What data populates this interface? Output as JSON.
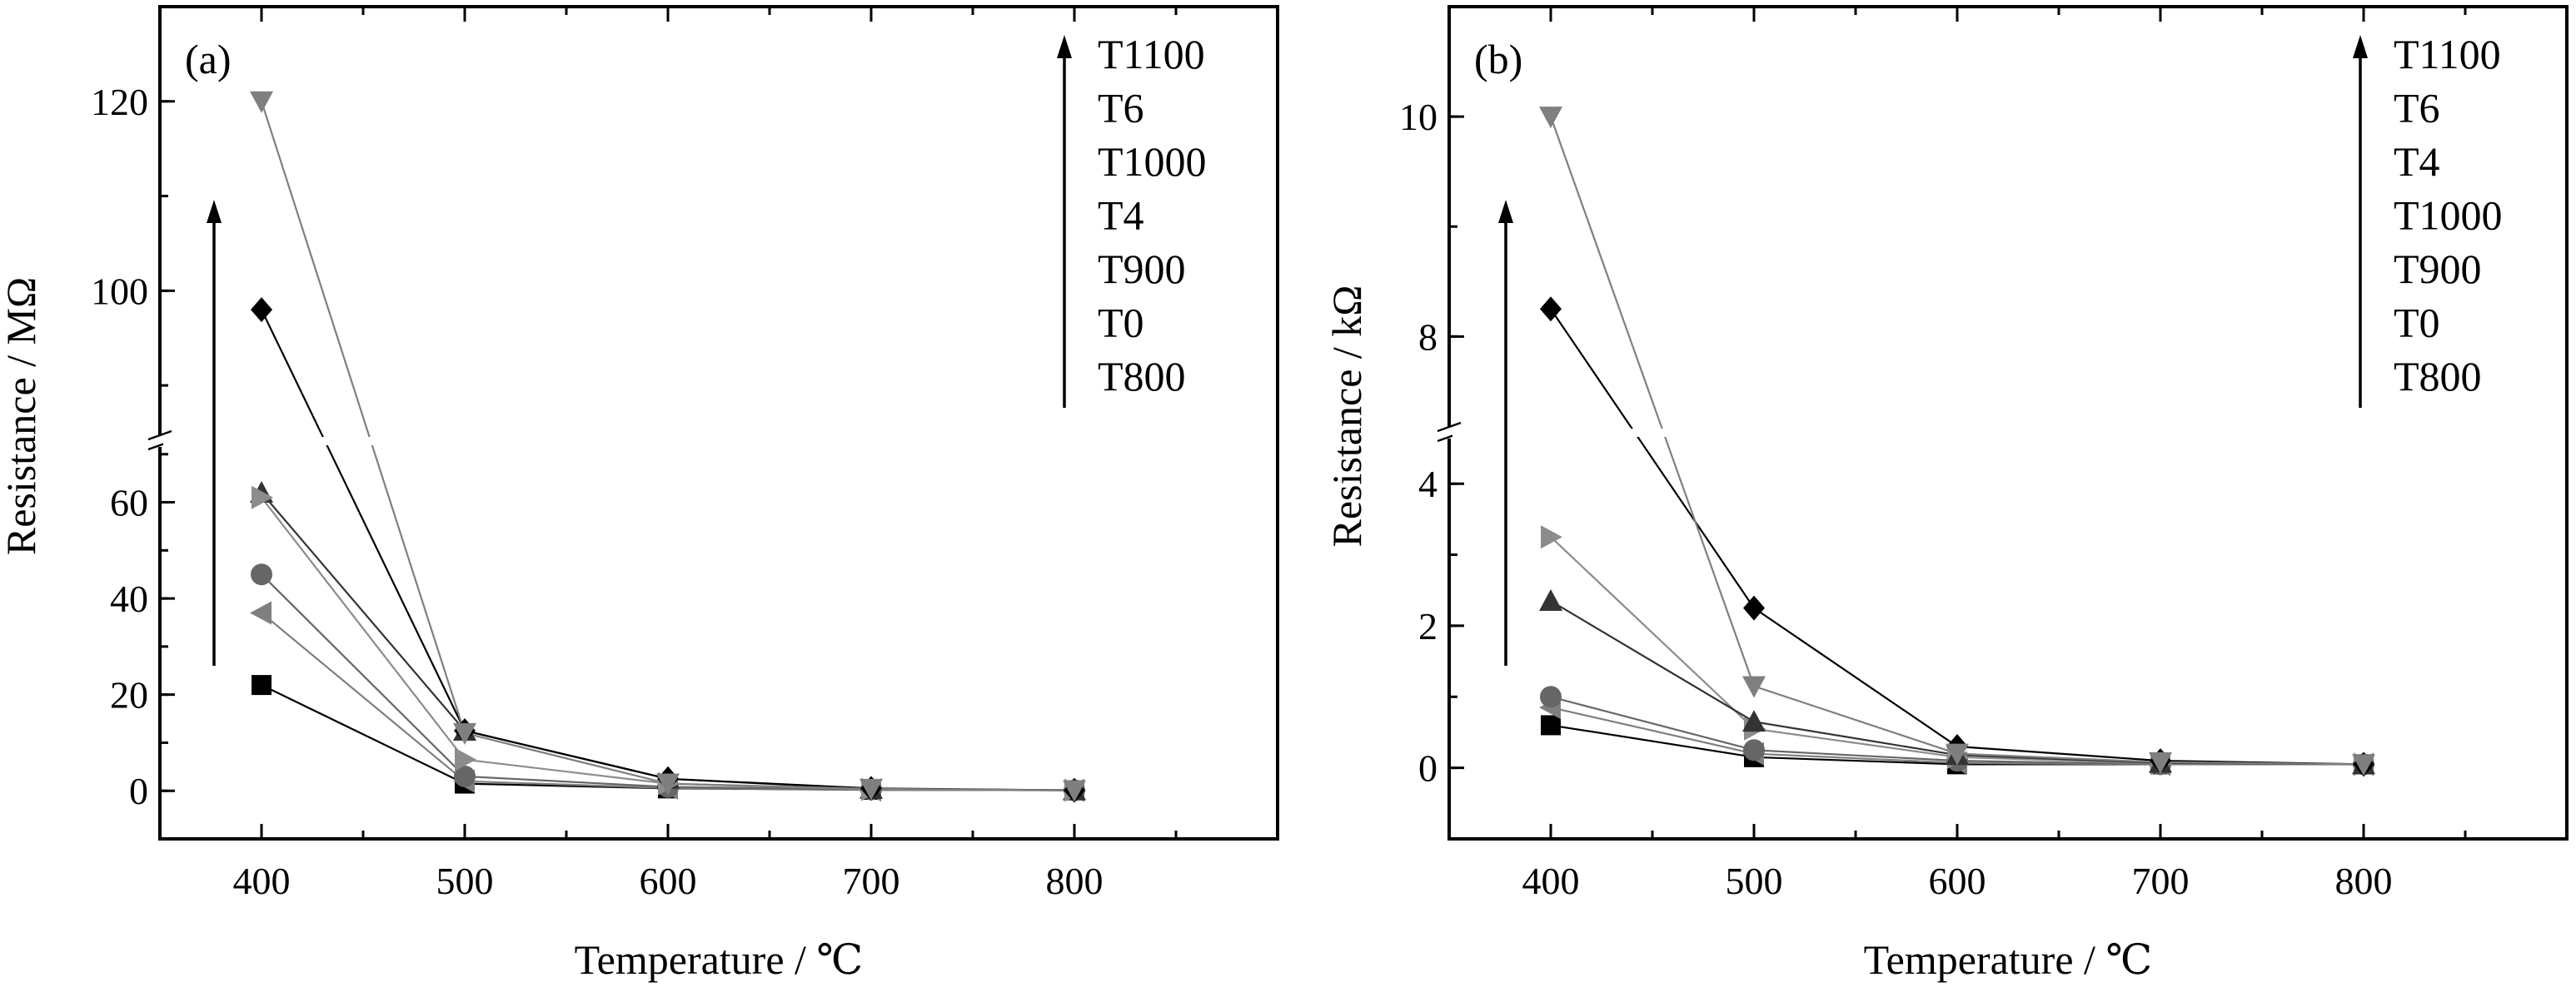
{
  "chart_data": [
    {
      "type": "line",
      "panel_label": "(a)",
      "xlabel": "Temperature / ℃",
      "ylabel": "Resistance / MΩ",
      "x": [
        400,
        500,
        600,
        700,
        800
      ],
      "xlim": [
        350,
        900
      ],
      "xticks": [
        "400",
        "500",
        "600",
        "700",
        "800"
      ],
      "y_break": true,
      "ylim_lower": [
        -10,
        71
      ],
      "ylim_upper": [
        85,
        130
      ],
      "yticks_lower": [
        "0",
        "20",
        "40",
        "60"
      ],
      "yticks_upper": [
        "100",
        "120"
      ],
      "yticks_lower_values": [
        0,
        20,
        40,
        60
      ],
      "yticks_upper_values": [
        100,
        120
      ],
      "legend_order": [
        "T1100",
        "T6",
        "T1000",
        "T4",
        "T900",
        "T0",
        "T800"
      ],
      "series": [
        {
          "name": "T800",
          "marker": "square",
          "color": "#000000",
          "values": [
            22,
            1.5,
            0.5,
            0.2,
            0.1
          ]
        },
        {
          "name": "T0",
          "marker": "triangle-left",
          "color": "#7f7f7f",
          "values": [
            37,
            2.0,
            0.6,
            0.2,
            0.1
          ]
        },
        {
          "name": "T900",
          "marker": "circle",
          "color": "#666666",
          "values": [
            45,
            3.0,
            0.8,
            0.3,
            0.1
          ]
        },
        {
          "name": "T4",
          "marker": "triangle-up",
          "color": "#333333",
          "values": [
            62,
            12.5,
            2.5,
            0.4,
            0.1
          ]
        },
        {
          "name": "T1000",
          "marker": "triangle-right",
          "color": "#8c8c8c",
          "values": [
            61,
            6.5,
            1.5,
            0.3,
            0.1
          ]
        },
        {
          "name": "T6",
          "marker": "diamond",
          "color": "#000000",
          "values": [
            98,
            12.5,
            2.5,
            0.5,
            0.1
          ]
        },
        {
          "name": "T1100",
          "marker": "triangle-down",
          "color": "#7f7f7f",
          "values": [
            120,
            12.0,
            1.5,
            0.4,
            0.1
          ]
        }
      ]
    },
    {
      "type": "line",
      "panel_label": "(b)",
      "xlabel": "Temperature / ℃",
      "ylabel": "Resistance / kΩ",
      "x": [
        400,
        500,
        600,
        700,
        800
      ],
      "xlim": [
        350,
        900
      ],
      "xticks": [
        "400",
        "500",
        "600",
        "700",
        "800"
      ],
      "y_break": true,
      "ylim_lower": [
        -1,
        4.6
      ],
      "ylim_upper": [
        7.2,
        11.0
      ],
      "yticks_lower": [
        "0",
        "2",
        "4"
      ],
      "yticks_upper": [
        "8",
        "10"
      ],
      "yticks_lower_values": [
        0,
        2,
        4
      ],
      "yticks_upper_values": [
        8,
        10
      ],
      "legend_order": [
        "T1100",
        "T6",
        "T4",
        "T1000",
        "T900",
        "T0",
        "T800"
      ],
      "series": [
        {
          "name": "T800",
          "marker": "square",
          "color": "#000000",
          "values": [
            0.6,
            0.15,
            0.05,
            0.05,
            0.05
          ]
        },
        {
          "name": "T0",
          "marker": "triangle-left",
          "color": "#7f7f7f",
          "values": [
            0.85,
            0.2,
            0.07,
            0.05,
            0.05
          ]
        },
        {
          "name": "T900",
          "marker": "circle",
          "color": "#666666",
          "values": [
            1.0,
            0.25,
            0.1,
            0.05,
            0.05
          ]
        },
        {
          "name": "T1000",
          "marker": "triangle-right",
          "color": "#8c8c8c",
          "values": [
            3.25,
            0.55,
            0.15,
            0.06,
            0.05
          ]
        },
        {
          "name": "T4",
          "marker": "triangle-up",
          "color": "#333333",
          "values": [
            2.35,
            0.65,
            0.18,
            0.07,
            0.05
          ]
        },
        {
          "name": "T6",
          "marker": "diamond",
          "color": "#000000",
          "values": [
            8.25,
            2.25,
            0.3,
            0.1,
            0.05
          ]
        },
        {
          "name": "T1100",
          "marker": "triangle-down",
          "color": "#7f7f7f",
          "values": [
            10.0,
            1.15,
            0.2,
            0.08,
            0.05
          ]
        }
      ]
    }
  ]
}
